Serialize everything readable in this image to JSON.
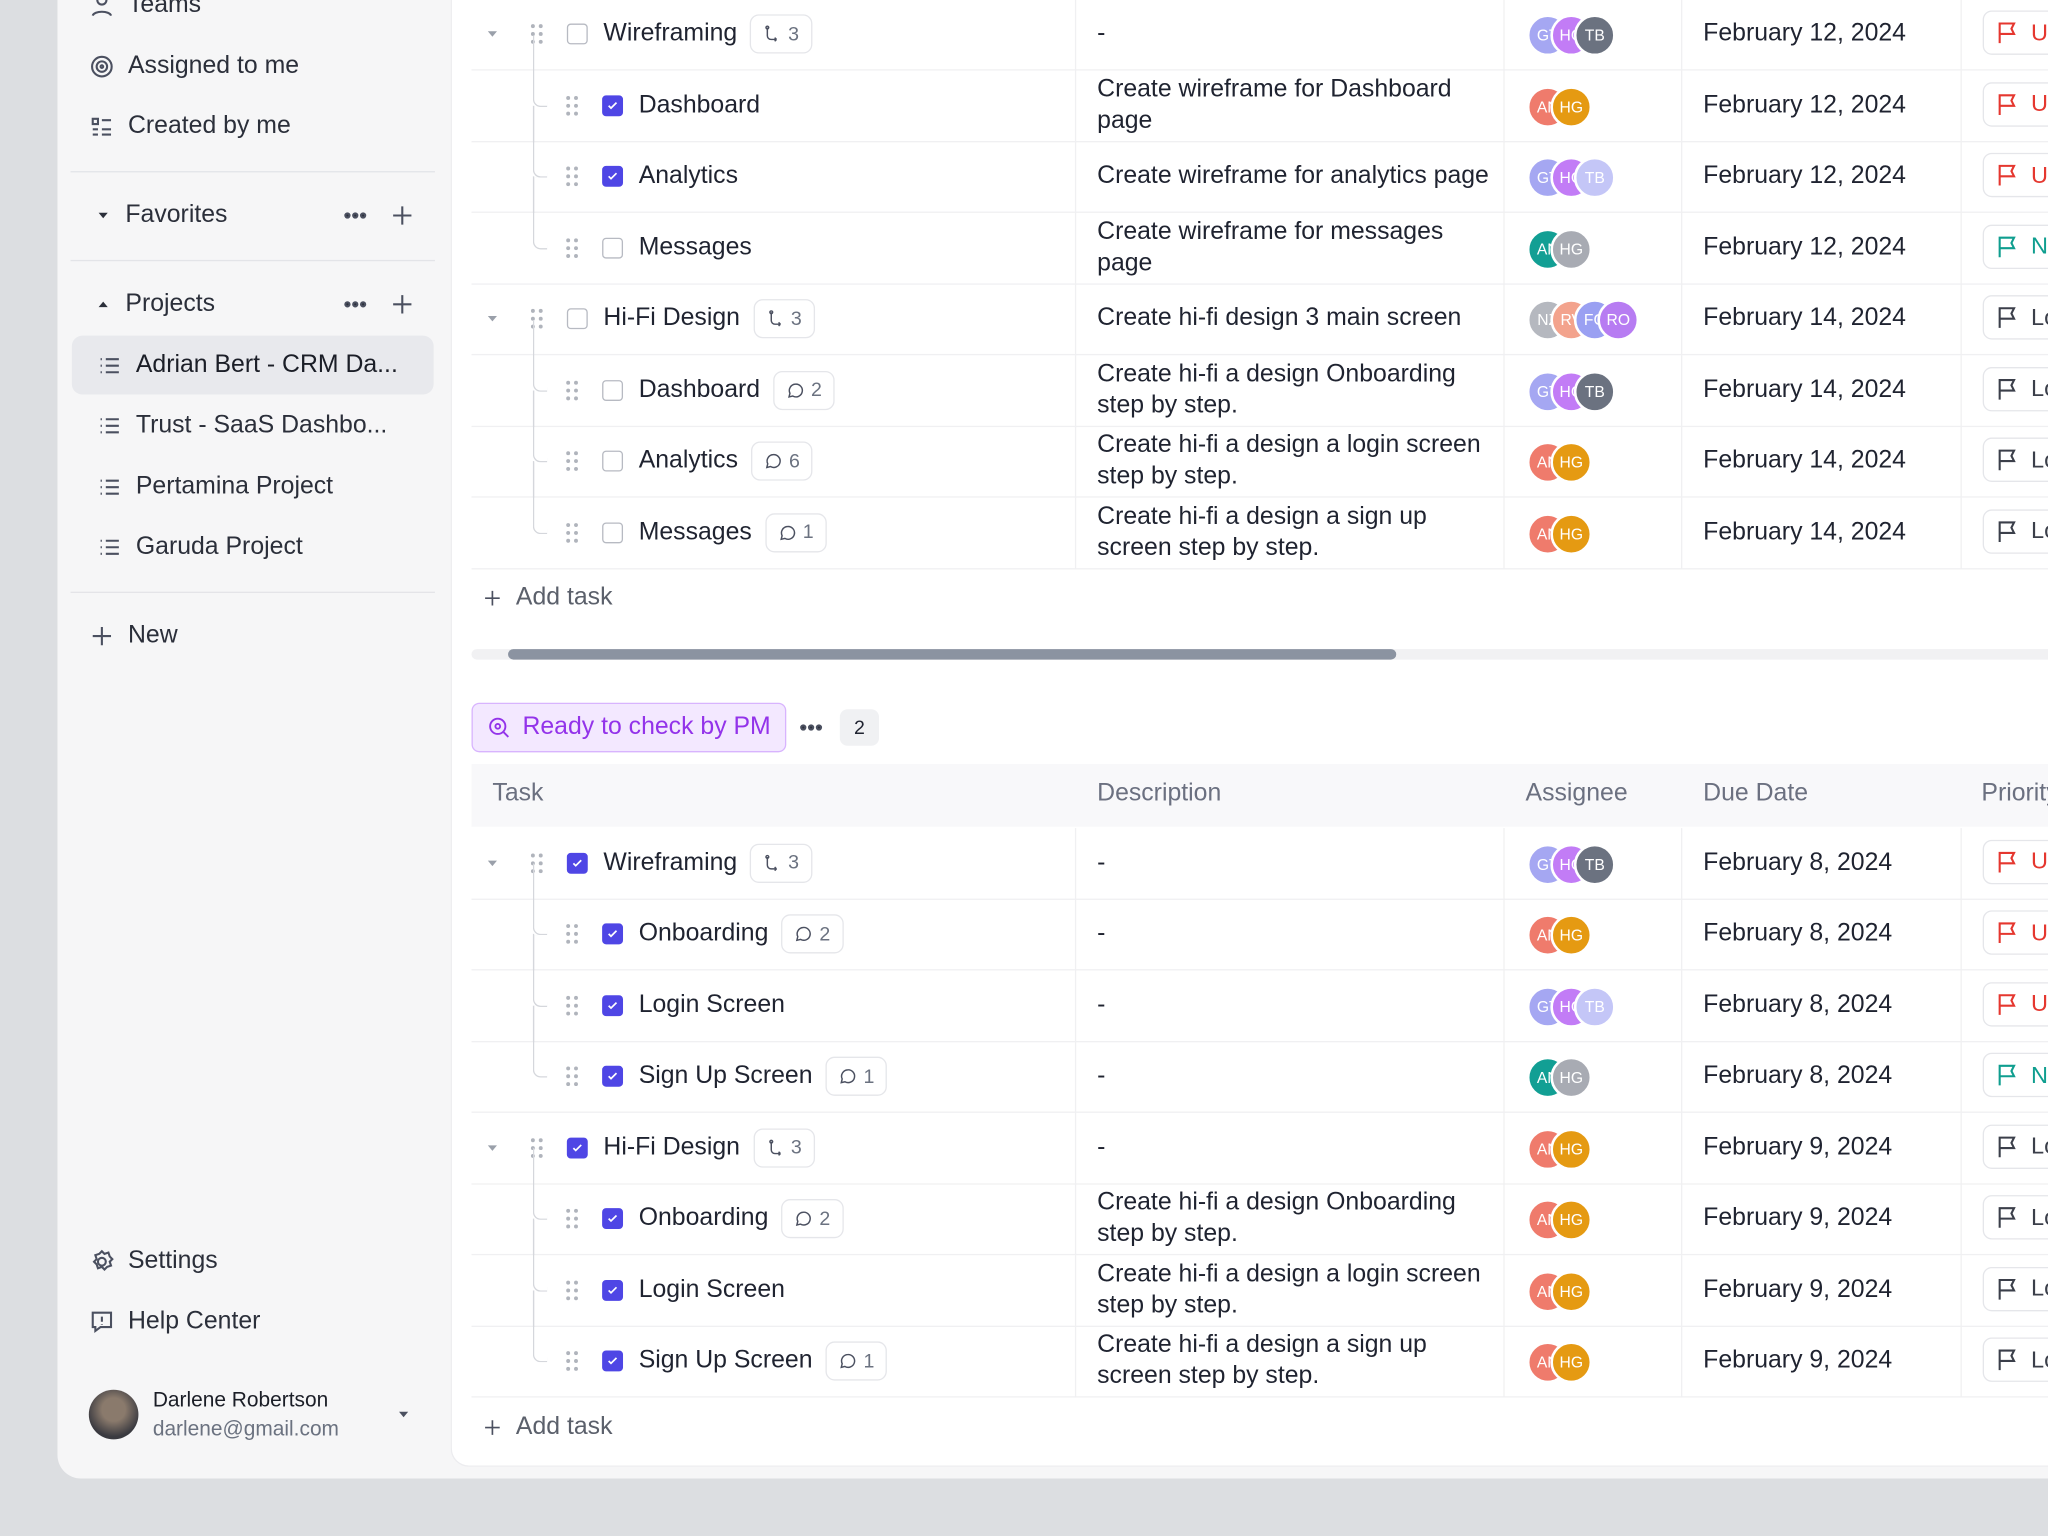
{
  "sidebar": {
    "nav": [
      "Teams",
      "Assigned to me",
      "Created by me"
    ],
    "favorites": "Favorites",
    "projects_label": "Projects",
    "projects": [
      "Adrian Bert - CRM Da...",
      "Trust - SaaS Dashbo...",
      "Pertamina Project",
      "Garuda Project"
    ],
    "new": "New",
    "footer": [
      "Settings",
      "Help Center"
    ],
    "user": {
      "name": "Darlene Robertson",
      "email": "darlene@gmail.com"
    }
  },
  "sections": [
    {
      "add_task": "Add task",
      "rows": [
        {
          "level": 0,
          "checked": false,
          "name": "Wireframing",
          "badge": {
            "kind": "subtask",
            "count": 3
          },
          "description": "-",
          "assignees": [
            [
              "GT",
              "#a5a7f2"
            ],
            [
              "HG",
              "#c27cf6"
            ],
            [
              "TB",
              "#6b7280"
            ]
          ],
          "due": "February 12, 2024",
          "priority": "Urgent"
        },
        {
          "level": 1,
          "checked": true,
          "name": "Dashboard",
          "badge": null,
          "description": "Create wireframe for Dashboard page",
          "assignees": [
            [
              "AN",
              "#ef7b6c"
            ],
            [
              "HG",
              "#e59a12"
            ]
          ],
          "due": "February 12, 2024",
          "priority": "Urgent"
        },
        {
          "level": 1,
          "checked": true,
          "name": "Analytics",
          "badge": null,
          "description": "Create wireframe for analytics page",
          "assignees": [
            [
              "GT",
              "#a5a7f2"
            ],
            [
              "HG",
              "#c27cf6"
            ],
            [
              "TB",
              "#c4c6f7"
            ]
          ],
          "due": "February 12, 2024",
          "priority": "Urgent"
        },
        {
          "level": 1,
          "checked": false,
          "name": "Messages",
          "badge": null,
          "description": "Create wireframe for messages page",
          "assignees": [
            [
              "AN",
              "#129f94"
            ],
            [
              "HG",
              "#a8abb3"
            ]
          ],
          "due": "February 12, 2024",
          "priority": "Normal"
        },
        {
          "level": 0,
          "checked": false,
          "name": "Hi-Fi Design",
          "badge": {
            "kind": "subtask",
            "count": 3
          },
          "description": "Create hi-fi design  3 main screen",
          "assignees": [
            [
              "NZ",
              "#b5b8bf"
            ],
            [
              "RV",
              "#f3a38d"
            ],
            [
              "FG",
              "#9aa0f2"
            ],
            [
              "RO",
              "#b77cf2"
            ]
          ],
          "due": "February 14, 2024",
          "priority": "Low"
        },
        {
          "level": 1,
          "checked": false,
          "name": "Dashboard",
          "badge": {
            "kind": "comment",
            "count": 2
          },
          "description": "Create hi-fi a design Onboarding step by step.",
          "assignees": [
            [
              "GT",
              "#a5a7f2"
            ],
            [
              "HG",
              "#c27cf6"
            ],
            [
              "TB",
              "#6b7280"
            ]
          ],
          "due": "February 14, 2024",
          "priority": "Low"
        },
        {
          "level": 1,
          "checked": false,
          "name": "Analytics",
          "badge": {
            "kind": "comment",
            "count": 6
          },
          "description": "Create hi-fi a design a login screen step by step.",
          "assignees": [
            [
              "AN",
              "#ef7b6c"
            ],
            [
              "HG",
              "#e59a12"
            ]
          ],
          "due": "February 14, 2024",
          "priority": "Low"
        },
        {
          "level": 1,
          "checked": false,
          "name": "Messages",
          "badge": {
            "kind": "comment",
            "count": 1
          },
          "description": "Create hi-fi a design a sign up screen step by step.",
          "assignees": [
            [
              "AN",
              "#ef7b6c"
            ],
            [
              "HG",
              "#e59a12"
            ]
          ],
          "due": "February 14, 2024",
          "priority": "Low"
        }
      ]
    },
    {
      "status": "Ready to check by PM",
      "count": 2,
      "columns": [
        "Task",
        "Description",
        "Assignee",
        "Due Date",
        "Priority"
      ],
      "add_task": "Add task",
      "rows": [
        {
          "level": 0,
          "checked": true,
          "name": "Wireframing",
          "badge": {
            "kind": "subtask",
            "count": 3
          },
          "description": "-",
          "assignees": [
            [
              "GT",
              "#a5a7f2"
            ],
            [
              "HG",
              "#c27cf6"
            ],
            [
              "TB",
              "#6b7280"
            ]
          ],
          "due": "February 8, 2024",
          "priority": "Urgent"
        },
        {
          "level": 1,
          "checked": true,
          "name": "Onboarding",
          "badge": {
            "kind": "comment",
            "count": 2
          },
          "description": "-",
          "assignees": [
            [
              "AN",
              "#ef7b6c"
            ],
            [
              "HG",
              "#e59a12"
            ]
          ],
          "due": "February 8, 2024",
          "priority": "Urgent"
        },
        {
          "level": 1,
          "checked": true,
          "name": "Login Screen",
          "badge": null,
          "description": "-",
          "assignees": [
            [
              "GT",
              "#a5a7f2"
            ],
            [
              "HG",
              "#c27cf6"
            ],
            [
              "TB",
              "#c4c6f7"
            ]
          ],
          "due": "February 8, 2024",
          "priority": "Urgent"
        },
        {
          "level": 1,
          "checked": true,
          "name": "Sign Up Screen",
          "badge": {
            "kind": "comment",
            "count": 1
          },
          "description": "-",
          "assignees": [
            [
              "AN",
              "#129f94"
            ],
            [
              "HG",
              "#a8abb3"
            ]
          ],
          "due": "February 8, 2024",
          "priority": "Normal"
        },
        {
          "level": 0,
          "checked": true,
          "name": "Hi-Fi Design",
          "badge": {
            "kind": "subtask",
            "count": 3
          },
          "description": "-",
          "assignees": [
            [
              "AN",
              "#ef7b6c"
            ],
            [
              "HG",
              "#e59a12"
            ]
          ],
          "due": "February 9, 2024",
          "priority": "Low"
        },
        {
          "level": 1,
          "checked": true,
          "name": "Onboarding",
          "badge": {
            "kind": "comment",
            "count": 2
          },
          "description": "Create hi-fi a design Onboarding step by step.",
          "assignees": [
            [
              "AN",
              "#ef7b6c"
            ],
            [
              "HG",
              "#e59a12"
            ]
          ],
          "due": "February 9, 2024",
          "priority": "Low"
        },
        {
          "level": 1,
          "checked": true,
          "name": "Login Screen",
          "badge": null,
          "description": "Create hi-fi a design a login screen step by step.",
          "assignees": [
            [
              "AN",
              "#ef7b6c"
            ],
            [
              "HG",
              "#e59a12"
            ]
          ],
          "due": "February 9, 2024",
          "priority": "Low"
        },
        {
          "level": 1,
          "checked": true,
          "name": "Sign Up Screen",
          "badge": {
            "kind": "comment",
            "count": 1
          },
          "description": "Create hi-fi a design a sign up screen step by step.",
          "assignees": [
            [
              "AN",
              "#ef7b6c"
            ],
            [
              "HG",
              "#e59a12"
            ]
          ],
          "due": "February 9, 2024",
          "priority": "Low"
        }
      ]
    }
  ],
  "priority_colors": {
    "Urgent": "#e5372f",
    "Normal": "#0f9e8f",
    "Low": "#3b3f4a"
  }
}
